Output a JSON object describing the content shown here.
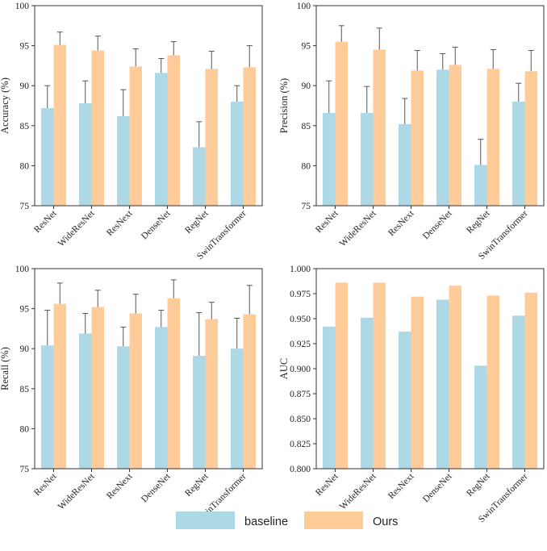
{
  "colors": {
    "baseline": "#ADD8E6",
    "ours": "#FFCC99",
    "error": "#555555",
    "axis": "#333333"
  },
  "legend": [
    {
      "label": "baseline",
      "color_key": "baseline"
    },
    {
      "label": "Ours",
      "color_key": "ours"
    }
  ],
  "chart_data": [
    {
      "type": "bar",
      "ylabel": "Accuracy (%)",
      "ylim": [
        75,
        100
      ],
      "yticks": [
        "75",
        "80",
        "85",
        "90",
        "95",
        "100"
      ],
      "categories": [
        "ResNet",
        "WideResNet",
        "ResNext",
        "DenseNet",
        "RegNet",
        "SwinTransformer"
      ],
      "series": [
        {
          "name": "baseline",
          "values": [
            87.2,
            87.8,
            86.2,
            91.6,
            82.3,
            88.0
          ],
          "errors": [
            2.8,
            2.8,
            3.3,
            1.8,
            3.2,
            2.0
          ]
        },
        {
          "name": "Ours",
          "values": [
            95.1,
            94.4,
            92.4,
            93.8,
            92.1,
            92.3
          ],
          "errors": [
            1.6,
            1.8,
            2.2,
            1.7,
            2.2,
            2.7
          ]
        }
      ]
    },
    {
      "type": "bar",
      "ylabel": "Precision (%)",
      "ylim": [
        75,
        100
      ],
      "yticks": [
        "75",
        "80",
        "85",
        "90",
        "95",
        "100"
      ],
      "categories": [
        "ResNet",
        "WideResNet",
        "ResNext",
        "DenseNet",
        "RegNet",
        "SwinTransformer"
      ],
      "series": [
        {
          "name": "baseline",
          "values": [
            86.6,
            86.6,
            85.2,
            92.0,
            80.1,
            88.0
          ],
          "errors": [
            4.0,
            3.3,
            3.2,
            2.0,
            3.2,
            2.3
          ]
        },
        {
          "name": "Ours",
          "values": [
            95.5,
            94.5,
            91.9,
            92.6,
            92.1,
            91.8
          ],
          "errors": [
            2.0,
            2.7,
            2.5,
            2.2,
            2.4,
            2.6
          ]
        }
      ]
    },
    {
      "type": "bar",
      "ylabel": "Recall (%)",
      "ylim": [
        75,
        100
      ],
      "yticks": [
        "75",
        "80",
        "85",
        "90",
        "95",
        "100"
      ],
      "categories": [
        "ResNet",
        "WideResNet",
        "ResNext",
        "DenseNet",
        "RegNet",
        "SwinTransformer"
      ],
      "series": [
        {
          "name": "baseline",
          "values": [
            90.4,
            91.9,
            90.3,
            92.7,
            89.1,
            90.0
          ],
          "errors": [
            4.4,
            2.5,
            2.4,
            2.1,
            5.4,
            3.8
          ]
        },
        {
          "name": "Ours",
          "values": [
            95.6,
            95.2,
            94.4,
            96.3,
            93.7,
            94.3
          ],
          "errors": [
            2.6,
            2.1,
            2.4,
            2.3,
            2.1,
            3.6
          ]
        }
      ]
    },
    {
      "type": "bar",
      "ylabel": "AUC",
      "ylim": [
        0.8,
        1.0
      ],
      "yticks": [
        "0.800",
        "0.825",
        "0.850",
        "0.875",
        "0.900",
        "0.925",
        "0.950",
        "0.975",
        "1.000"
      ],
      "categories": [
        "ResNet",
        "WideResNet",
        "ResNext",
        "DenseNet",
        "RegNet",
        "SwinTransformer"
      ],
      "series": [
        {
          "name": "baseline",
          "values": [
            0.942,
            0.951,
            0.937,
            0.969,
            0.903,
            0.953
          ],
          "errors": null
        },
        {
          "name": "Ours",
          "values": [
            0.986,
            0.986,
            0.972,
            0.983,
            0.973,
            0.976
          ],
          "errors": null
        }
      ]
    }
  ]
}
